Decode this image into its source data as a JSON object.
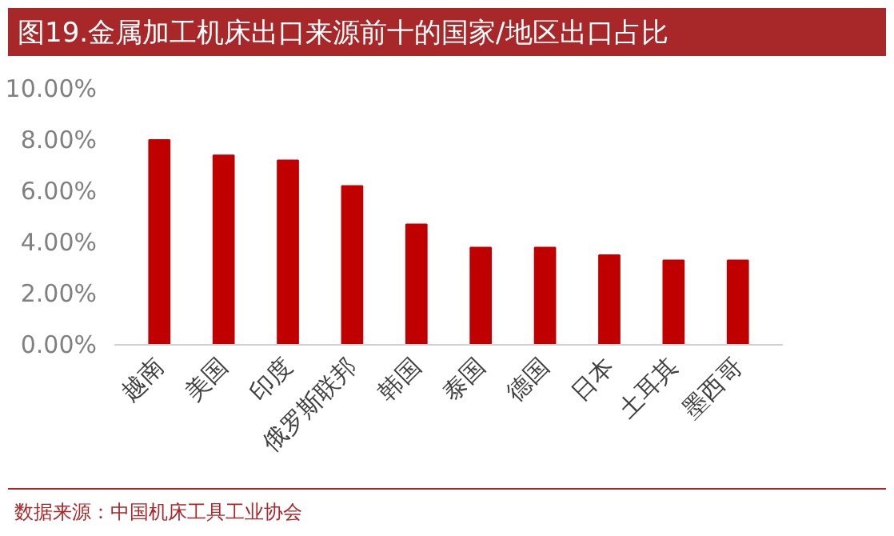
{
  "chart_data": {
    "type": "bar",
    "title": "图19.金属加工机床出口来源前十的国家/地区出口占比",
    "categories": [
      "越南",
      "美国",
      "印度",
      "俄罗斯联邦",
      "韩国",
      "泰国",
      "德国",
      "日本",
      "土耳其",
      "墨西哥"
    ],
    "values": [
      8.0,
      7.4,
      7.2,
      6.2,
      4.7,
      3.8,
      3.8,
      3.5,
      3.3,
      3.3
    ],
    "color": "#c00000",
    "ylim": [
      0,
      10
    ],
    "yticks": [
      {
        "value": 0,
        "label": "0.00%"
      },
      {
        "value": 2,
        "label": "2.00%"
      },
      {
        "value": 4,
        "label": "4.00%"
      },
      {
        "value": 6,
        "label": "6.00%"
      },
      {
        "value": 8,
        "label": "8.00%"
      },
      {
        "value": 10,
        "label": "10.00%"
      }
    ],
    "grid": false,
    "annotations": [
      "数据来源：中国机床工具工业协会"
    ]
  }
}
